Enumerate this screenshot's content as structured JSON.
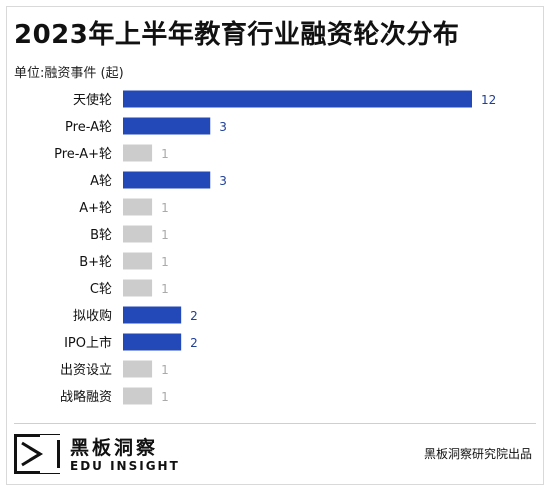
{
  "header": {
    "title": "2023年上半年教育行业融资轮次分布",
    "unit": "单位:融资事件 (起)"
  },
  "chart_data": {
    "type": "bar",
    "orientation": "horizontal",
    "categories": [
      "天使轮",
      "Pre-A轮",
      "Pre-A+轮",
      "A轮",
      "A+轮",
      "B轮",
      "B+轮",
      "C轮",
      "拟收购",
      "IPO上市",
      "出资设立",
      "战略融资"
    ],
    "values": [
      12,
      3,
      1,
      3,
      1,
      1,
      1,
      1,
      2,
      2,
      1,
      1
    ],
    "title": "2023年上半年教育行业融资轮次分布",
    "xlabel": "",
    "ylabel": "",
    "xlim": [
      0,
      12
    ],
    "grid": false,
    "legend": "none",
    "colors": {
      "highlight": "#2348b8",
      "muted": "#cccccc",
      "highlight_text": "#1f3f99",
      "muted_text": "#aaaaaa"
    }
  },
  "footer": {
    "logo_cn": "黑板洞察",
    "logo_en": "EDU INSIGHT",
    "source": "黑板洞察研究院出品"
  }
}
